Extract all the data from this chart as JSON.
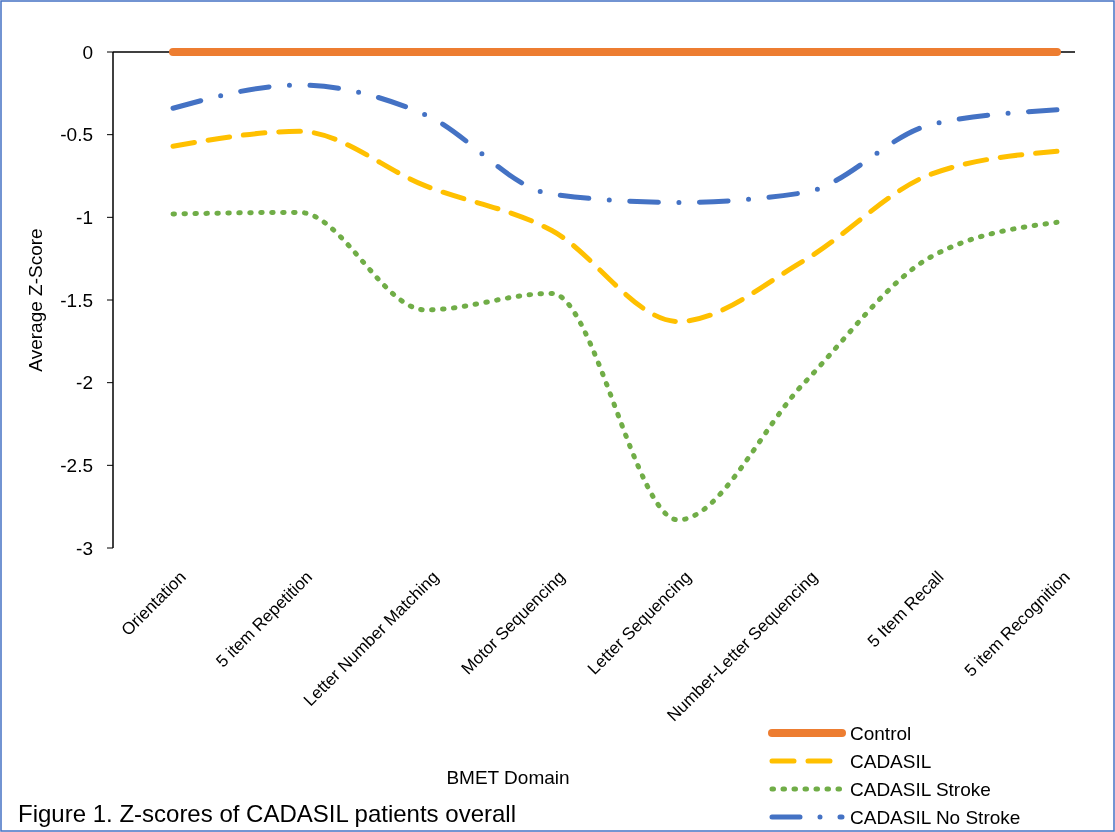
{
  "chart_data": {
    "type": "line",
    "xlabel": "BMET Domain",
    "ylabel": "Average Z-Score",
    "categories": [
      "Orientation",
      "5 item Repetition",
      "Letter Number Matching",
      "Motor Sequencing",
      "Letter Sequencing",
      "Number-Letter Sequencing",
      "5 Item Recall",
      "5 item Recognition"
    ],
    "series": [
      {
        "name": "Control",
        "color": "#ed7d31",
        "line_style": "solid",
        "values": [
          0,
          0,
          0,
          0,
          0,
          0,
          0,
          0
        ]
      },
      {
        "name": "CADASIL",
        "color": "#ffc000",
        "line_style": "dashed",
        "values": [
          -0.57,
          -0.48,
          -0.81,
          -1.08,
          -1.63,
          -1.26,
          -0.74,
          -0.6
        ]
      },
      {
        "name": "CADASIL Stroke",
        "color": "#70ad47",
        "line_style": "dotted",
        "values": [
          -0.98,
          -0.97,
          -1.56,
          -1.46,
          -2.83,
          -2.0,
          -1.24,
          -1.03
        ]
      },
      {
        "name": "CADASIL No Stroke",
        "color": "#4472c4",
        "line_style": "dashdot",
        "values": [
          -0.34,
          -0.2,
          -0.38,
          -0.86,
          -0.91,
          -0.85,
          -0.44,
          -0.35
        ]
      }
    ],
    "ylim": [
      -3,
      0
    ],
    "yticks": [
      -3,
      -2.5,
      -2,
      -1.5,
      -1,
      -0.5,
      0
    ],
    "legend": "bottom right",
    "annotations": [
      "Figure 1. Z-scores of CADASIL patients overall"
    ]
  }
}
